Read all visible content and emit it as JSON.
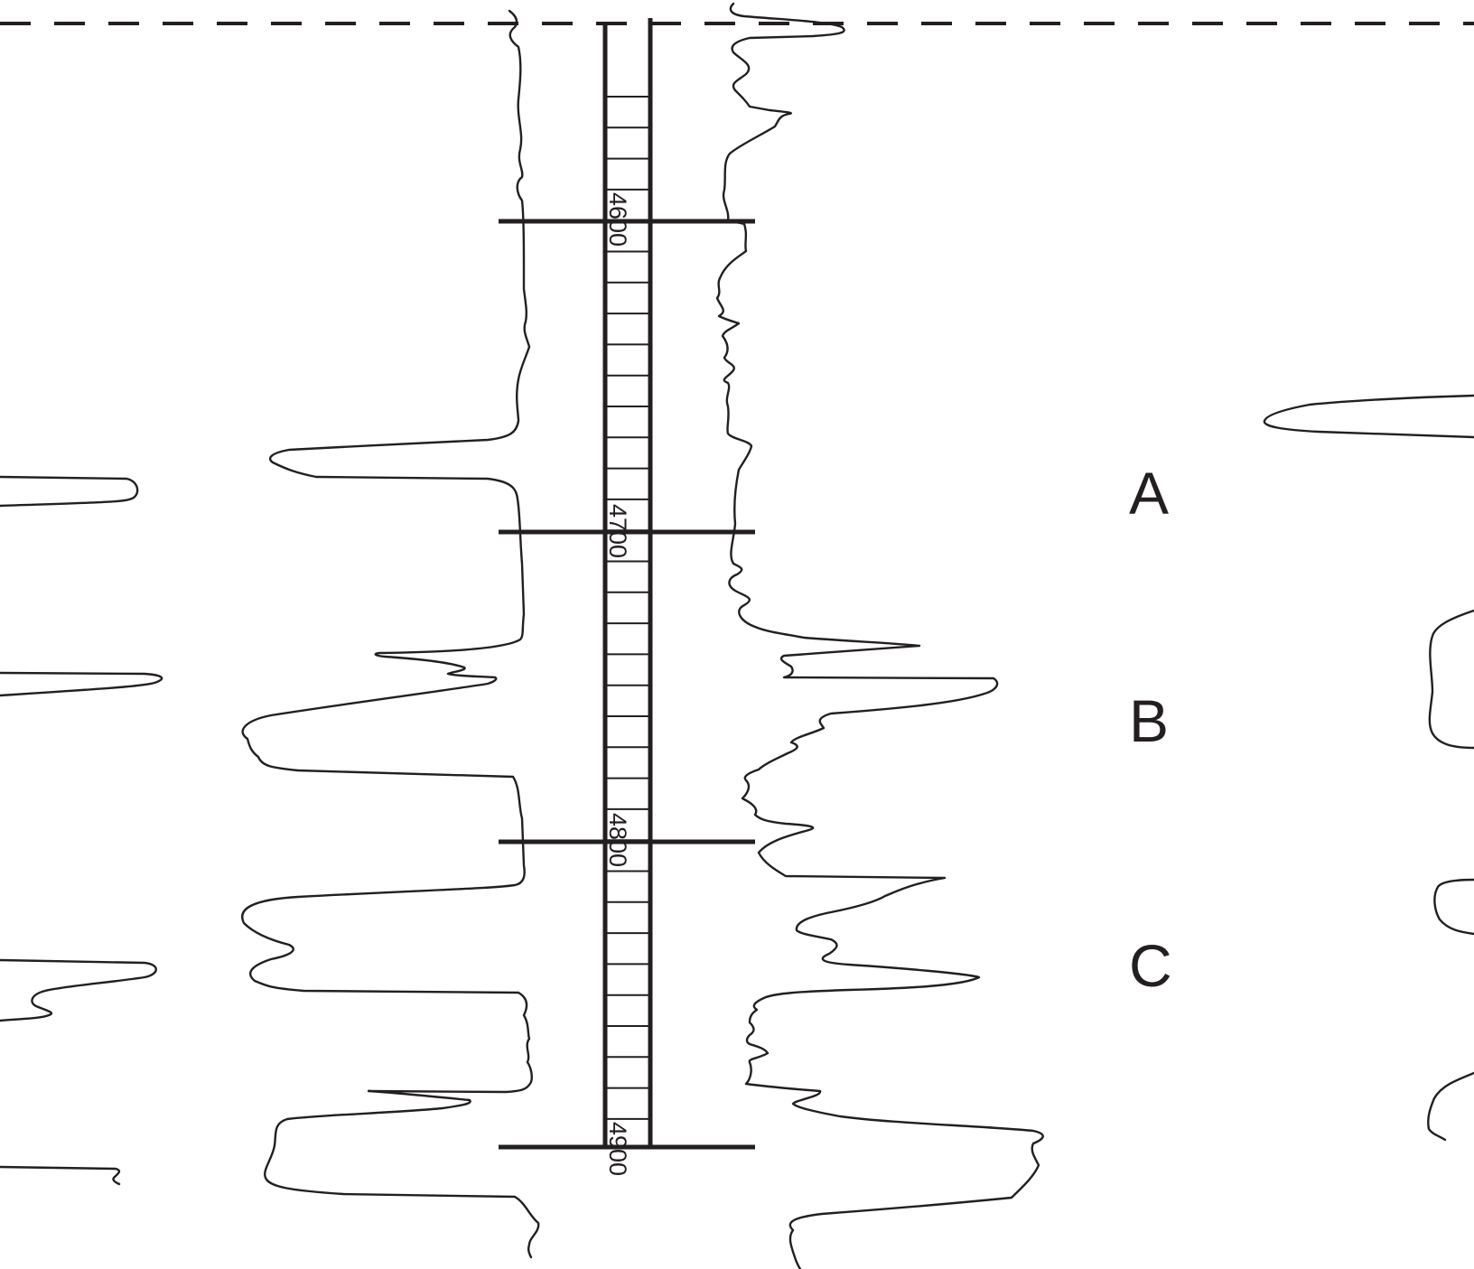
{
  "depth_track": {
    "labels": [
      "4600",
      "4700",
      "4800",
      "4900"
    ]
  },
  "zones": [
    "A",
    "B",
    "C"
  ],
  "colors": {
    "ink": "#231f20",
    "background": "#ffffff"
  }
}
